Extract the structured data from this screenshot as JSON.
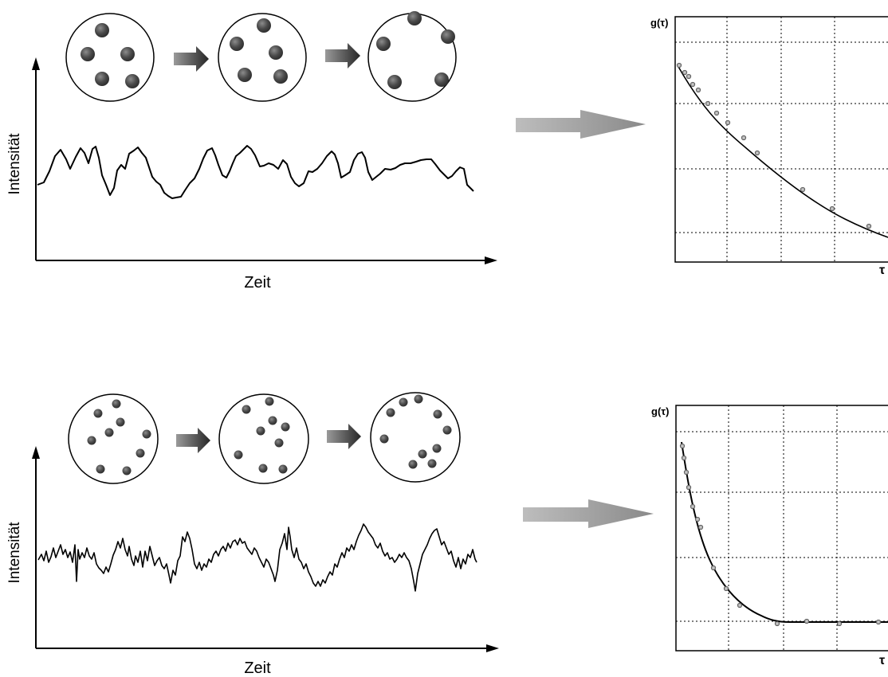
{
  "rows": [
    {
      "id": "large-particles",
      "intensity_label": "Intensität",
      "time_label": "Zeit",
      "g_label": "g(τ)",
      "tau_label": "τ"
    },
    {
      "id": "small-particles",
      "intensity_label": "Intensität",
      "time_label": "Zeit",
      "g_label": "g(τ)",
      "tau_label": "τ"
    }
  ],
  "colors": {
    "particle_large": "#4a4a4a",
    "particle_small": "#5a5a5a",
    "arrow_dark": "#2e2e2e",
    "arrow_light": "#999999",
    "line": "#000000",
    "grid": "#000000"
  }
}
